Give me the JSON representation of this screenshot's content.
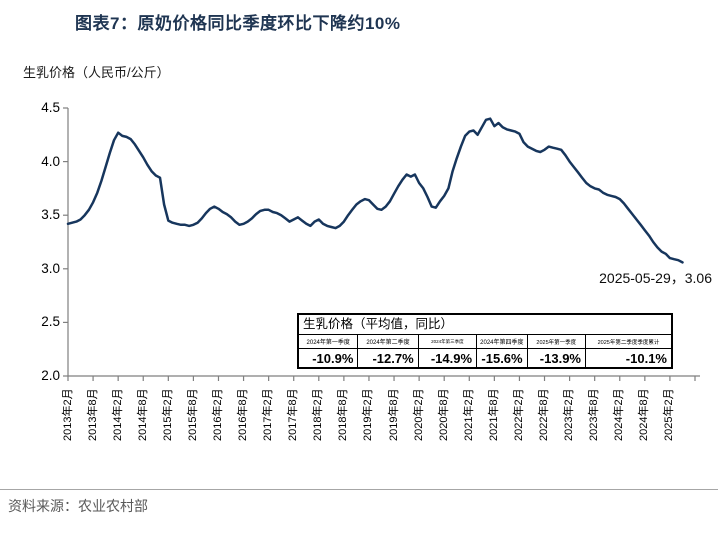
{
  "title": "图表7：原奶价格同比季度环比下降约10%",
  "subtitle": "生乳价格（人民币/公斤）",
  "annotation": "2025-05-29，3.06",
  "source": "资料来源：农业农村部",
  "colors": {
    "line": "#17365d",
    "axis": "#7f7f7f",
    "title_text": "#1f3552",
    "source_text": "#595959",
    "table_border": "#000000"
  },
  "milk_table": {
    "title": "生乳价格（平均值，同比）",
    "quarters": [
      "2024年第一季度",
      "2024年第二季度",
      "2024年第三季度",
      "2024年第四季度",
      "2025年第一季度",
      "2025年第二季度季度累计"
    ],
    "values": [
      "-10.9%",
      "-12.7%",
      "-14.9%",
      "-15.6%",
      "-13.9%",
      "-10.1%"
    ]
  },
  "chart_data": {
    "type": "line",
    "series_name": "生乳价格",
    "unit": "人民币/公斤",
    "ylim": [
      2.0,
      4.5
    ],
    "y_ticks": [
      2.0,
      2.5,
      3.0,
      3.5,
      4.0,
      4.5
    ],
    "grid": false,
    "legend": false,
    "x_monthly_start": "2013-02",
    "x_monthly_end": "2025-05",
    "x_label_interval_months": 6,
    "x_labels": [
      "2013年2月",
      "2013年8月",
      "2014年2月",
      "2014年8月",
      "2015年2月",
      "2015年8月",
      "2016年2月",
      "2016年8月",
      "2017年2月",
      "2017年8月",
      "2018年2月",
      "2018年8月",
      "2019年2月",
      "2019年8月",
      "2020年2月",
      "2020年8月",
      "2021年2月",
      "2021年8月",
      "2022年2月",
      "2022年8月",
      "2023年2月",
      "2023年8月",
      "2024年2月",
      "2024年8月",
      "2025年2月"
    ],
    "monthly_values": [
      3.42,
      3.43,
      3.44,
      3.46,
      3.5,
      3.55,
      3.62,
      3.71,
      3.82,
      3.95,
      4.08,
      4.2,
      4.27,
      4.24,
      4.23,
      4.21,
      4.16,
      4.1,
      4.04,
      3.97,
      3.91,
      3.87,
      3.85,
      3.6,
      3.45,
      3.43,
      3.42,
      3.41,
      3.41,
      3.4,
      3.41,
      3.43,
      3.47,
      3.52,
      3.56,
      3.58,
      3.56,
      3.53,
      3.51,
      3.48,
      3.44,
      3.41,
      3.42,
      3.44,
      3.47,
      3.51,
      3.54,
      3.55,
      3.55,
      3.53,
      3.52,
      3.5,
      3.47,
      3.44,
      3.46,
      3.48,
      3.45,
      3.42,
      3.4,
      3.44,
      3.46,
      3.42,
      3.4,
      3.39,
      3.38,
      3.4,
      3.44,
      3.5,
      3.55,
      3.6,
      3.63,
      3.65,
      3.64,
      3.6,
      3.56,
      3.55,
      3.58,
      3.63,
      3.7,
      3.77,
      3.83,
      3.88,
      3.86,
      3.88,
      3.8,
      3.75,
      3.67,
      3.58,
      3.57,
      3.63,
      3.68,
      3.75,
      3.91,
      4.03,
      4.14,
      4.24,
      4.28,
      4.29,
      4.25,
      4.32,
      4.39,
      4.4,
      4.33,
      4.36,
      4.32,
      4.3,
      4.29,
      4.28,
      4.26,
      4.18,
      4.14,
      4.12,
      4.1,
      4.09,
      4.11,
      4.14,
      4.13,
      4.12,
      4.11,
      4.06,
      4.0,
      3.95,
      3.9,
      3.85,
      3.8,
      3.77,
      3.75,
      3.74,
      3.71,
      3.69,
      3.68,
      3.67,
      3.65,
      3.61,
      3.56,
      3.51,
      3.46,
      3.41,
      3.36,
      3.31,
      3.25,
      3.2,
      3.16,
      3.14,
      3.1,
      3.09,
      3.08,
      3.06
    ],
    "last_point": {
      "date": "2025-05-29",
      "value": 3.06
    }
  }
}
